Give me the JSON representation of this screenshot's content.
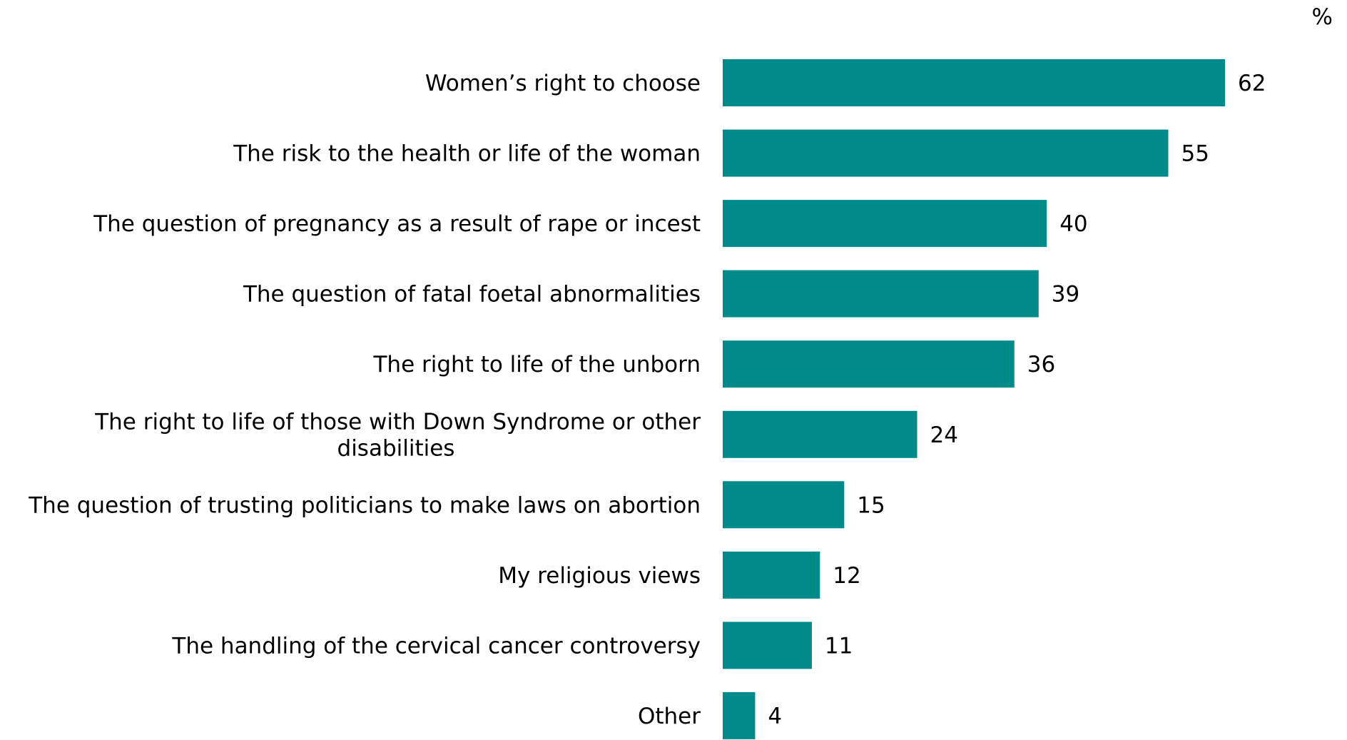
{
  "chart_data": {
    "type": "bar",
    "orientation": "horizontal",
    "unit_label": "%",
    "categories": [
      [
        "Women’s right to choose"
      ],
      [
        "The risk to the health or life of the woman"
      ],
      [
        "The question of pregnancy as a result of rape or incest"
      ],
      [
        "The question of fatal foetal abnormalities"
      ],
      [
        "The right to life of the unborn"
      ],
      [
        "The right to life of those with Down Syndrome or other",
        "disabilities"
      ],
      [
        "The question of trusting politicians to make laws on abortion"
      ],
      [
        "My religious views"
      ],
      [
        "The handling of the cervical cancer controversy"
      ],
      [
        "Other"
      ]
    ],
    "values": [
      62,
      55,
      40,
      39,
      36,
      24,
      15,
      12,
      11,
      4
    ],
    "bar_color": "#008b8b",
    "xlim": [
      0,
      70
    ],
    "grid": false,
    "legend": "none"
  }
}
